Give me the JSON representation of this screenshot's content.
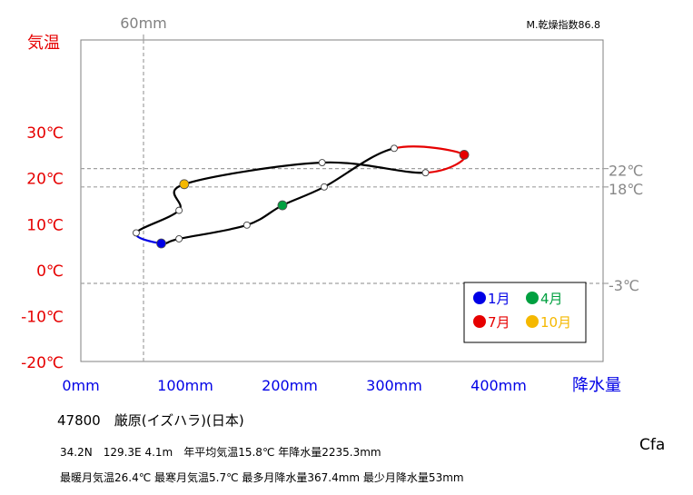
{
  "chart_data": {
    "type": "line",
    "title": "",
    "xlabel": "降水量",
    "ylabel": "気温",
    "x_unit": "mm",
    "y_unit": "℃",
    "xlim": [
      0,
      500
    ],
    "ylim": [
      -20,
      50
    ],
    "x_ticks": [
      0,
      100,
      200,
      300,
      400
    ],
    "x_tick_labels": [
      "0mm",
      "100mm",
      "200mm",
      "300mm",
      "400mm"
    ],
    "y_ticks": [
      -20,
      -10,
      0,
      10,
      20,
      30
    ],
    "y_tick_labels": [
      "-20℃",
      "-10℃",
      "0℃",
      "10℃",
      "20℃",
      "30℃"
    ],
    "top_marker": {
      "x": 60,
      "label": "60mm"
    },
    "reference_lines": [
      {
        "y": 22,
        "label": "22℃"
      },
      {
        "y": 18,
        "label": "18℃"
      },
      {
        "y": -3,
        "label": "-3℃"
      }
    ],
    "aridity_index": "M.乾燥指数86.8",
    "months": [
      1,
      2,
      3,
      4,
      5,
      6,
      7,
      8,
      9,
      10,
      11,
      12
    ],
    "series": [
      {
        "x": [
          77,
          94,
          159,
          193,
          233,
          300,
          367,
          330,
          231,
          99,
          94,
          53
        ],
        "y": [
          5.7,
          6.7,
          9.7,
          14.0,
          18.0,
          26.4,
          25.0,
          21.1,
          23.3,
          18.6,
          12.9,
          8.0
        ]
      }
    ],
    "highlight_months": [
      {
        "month": 1,
        "label": "1月",
        "color": "#0000e6"
      },
      {
        "month": 4,
        "label": "4月",
        "color": "#00a040"
      },
      {
        "month": 7,
        "label": "7月",
        "color": "#e60000"
      },
      {
        "month": 10,
        "label": "10月",
        "color": "#f5b800"
      }
    ],
    "legend_position": "bottom-right",
    "grid": false
  },
  "station": {
    "name": "47800　厳原(イズハラ)(日本)",
    "line1": "34.2N　129.3E 4.1m　年平均気温15.8℃ 年降水量2235.3mm",
    "line2": "最暖月気温26.4℃ 最寒月気温5.7℃ 最多月降水量367.4mm 最少月降水量53mm"
  },
  "climate_class": "Cfa",
  "colors": {
    "temp_label": "#e60000",
    "precip_label": "#0000e6",
    "ref_label": "#888888",
    "winter": "#0000e6",
    "summer": "#e60000"
  }
}
